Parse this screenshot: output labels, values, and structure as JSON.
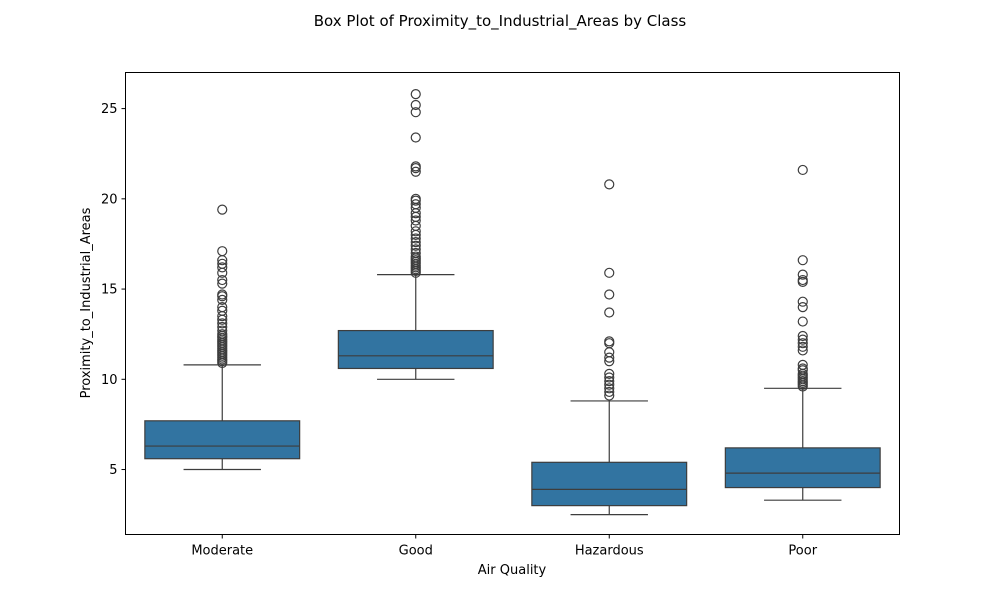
{
  "chart_data": {
    "type": "box",
    "title": "Box Plot of Proximity_to_Industrial_Areas by Class",
    "xlabel": "Air Quality",
    "ylabel": "Proximity_to_Industrial_Areas",
    "ylim": [
      1.4,
      27
    ],
    "yticks": [
      5,
      10,
      15,
      20,
      25
    ],
    "grid": false,
    "box_color": "#3274a1",
    "line_color": "#3d3d3d",
    "categories": [
      "Moderate",
      "Good",
      "Hazardous",
      "Poor"
    ],
    "boxes": [
      {
        "category": "Moderate",
        "whisker_low": 5.0,
        "q1": 5.6,
        "median": 6.3,
        "q3": 7.7,
        "whisker_high": 10.8,
        "outliers": [
          10.9,
          11.0,
          11.1,
          11.2,
          11.3,
          11.4,
          11.5,
          11.6,
          11.7,
          11.8,
          11.9,
          12.0,
          12.1,
          12.2,
          12.3,
          12.4,
          12.5,
          12.7,
          12.9,
          13.1,
          13.3,
          13.5,
          13.8,
          14.0,
          14.4,
          14.6,
          14.7,
          15.3,
          15.5,
          15.9,
          16.2,
          16.4,
          16.6,
          17.1,
          19.4
        ]
      },
      {
        "category": "Good",
        "whisker_low": 10.0,
        "q1": 10.6,
        "median": 11.3,
        "q3": 12.7,
        "whisker_high": 15.8,
        "outliers": [
          15.9,
          16.0,
          16.1,
          16.2,
          16.3,
          16.4,
          16.5,
          16.6,
          16.7,
          16.8,
          17.0,
          17.2,
          17.4,
          17.6,
          17.8,
          18.0,
          18.2,
          18.5,
          18.8,
          19.0,
          19.2,
          19.5,
          19.7,
          19.9,
          20.0,
          21.5,
          21.7,
          21.8,
          23.4,
          24.8,
          25.2,
          25.8
        ]
      },
      {
        "category": "Hazardous",
        "whisker_low": 2.5,
        "q1": 3.0,
        "median": 3.9,
        "q3": 5.4,
        "whisker_high": 8.8,
        "outliers": [
          9.1,
          9.3,
          9.5,
          9.7,
          9.9,
          10.1,
          10.3,
          11.0,
          11.2,
          11.5,
          12.0,
          12.1,
          13.7,
          14.7,
          15.9,
          20.8
        ]
      },
      {
        "category": "Poor",
        "whisker_low": 3.3,
        "q1": 4.0,
        "median": 4.8,
        "q3": 6.2,
        "whisker_high": 9.5,
        "outliers": [
          9.6,
          9.7,
          9.8,
          9.9,
          10.0,
          10.1,
          10.2,
          10.3,
          10.5,
          10.6,
          10.8,
          11.6,
          11.8,
          12.0,
          12.2,
          12.4,
          13.2,
          14.0,
          14.3,
          15.4,
          15.5,
          15.8,
          16.6,
          21.6
        ]
      }
    ]
  }
}
